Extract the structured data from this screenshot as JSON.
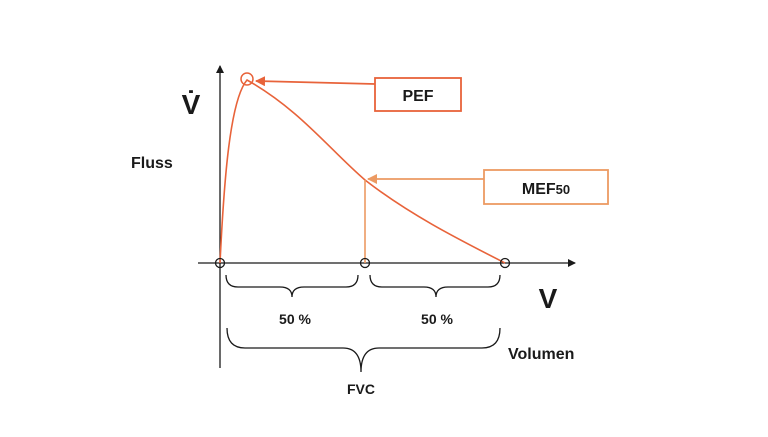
{
  "diagram": {
    "y_symbol": "V̇",
    "y_label": "Fluss",
    "x_symbol": "V",
    "x_label": "Volumen",
    "callouts": {
      "pef": {
        "text": "PEF"
      },
      "mef": {
        "text": "MEF",
        "subscript": "50"
      }
    },
    "half_left": "50 %",
    "half_right": "50 %",
    "total": "FVC",
    "colors": {
      "pef_curve": "#e8633a",
      "mef_line": "#ec9a62",
      "axis": "#1a1a1a"
    }
  }
}
